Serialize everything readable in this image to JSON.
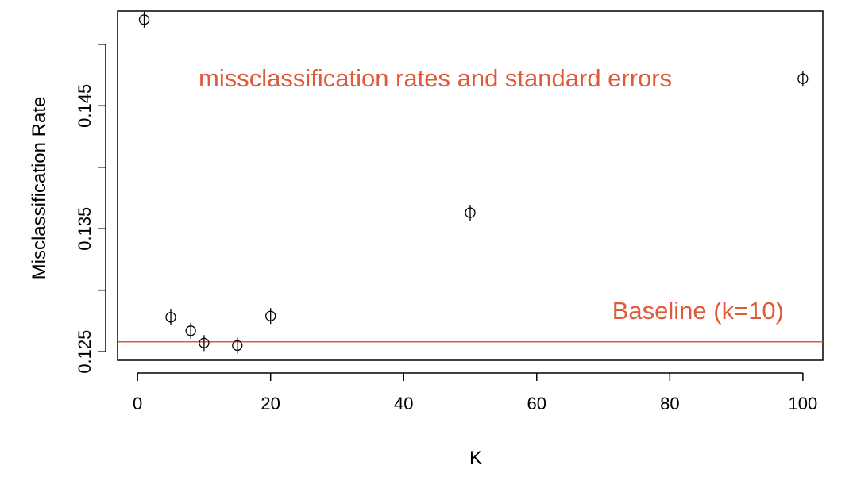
{
  "chart_data": {
    "type": "scatter",
    "xlabel": "K",
    "ylabel": "Misclassification Rate",
    "xlim": [
      -3,
      103
    ],
    "ylim": [
      0.1243,
      0.1527
    ],
    "x_ticks": [
      0,
      20,
      40,
      60,
      80,
      100
    ],
    "x_tick_labels": [
      "0",
      "20",
      "40",
      "60",
      "80",
      "100"
    ],
    "y_ticks": [
      0.125,
      0.13,
      0.135,
      0.14,
      0.145,
      0.15
    ],
    "y_tick_labels": [
      "0.125",
      "",
      "0.135",
      "",
      "0.145",
      ""
    ],
    "points": [
      {
        "x": 1,
        "y": 0.152
      },
      {
        "x": 5,
        "y": 0.1278
      },
      {
        "x": 8,
        "y": 0.1267
      },
      {
        "x": 10,
        "y": 0.1257
      },
      {
        "x": 15,
        "y": 0.1255
      },
      {
        "x": 20,
        "y": 0.1279
      },
      {
        "x": 50,
        "y": 0.1363
      },
      {
        "x": 100,
        "y": 0.1472
      }
    ],
    "baseline": {
      "y": 0.1258,
      "label": "Baseline (k=10)",
      "color": "#e05a3a"
    },
    "annotation": {
      "text": "missclassification rates and standard errors",
      "color": "#e05a3a"
    },
    "marker": "circle-with-vertical-errorbar",
    "grid": false,
    "legend": "none"
  }
}
